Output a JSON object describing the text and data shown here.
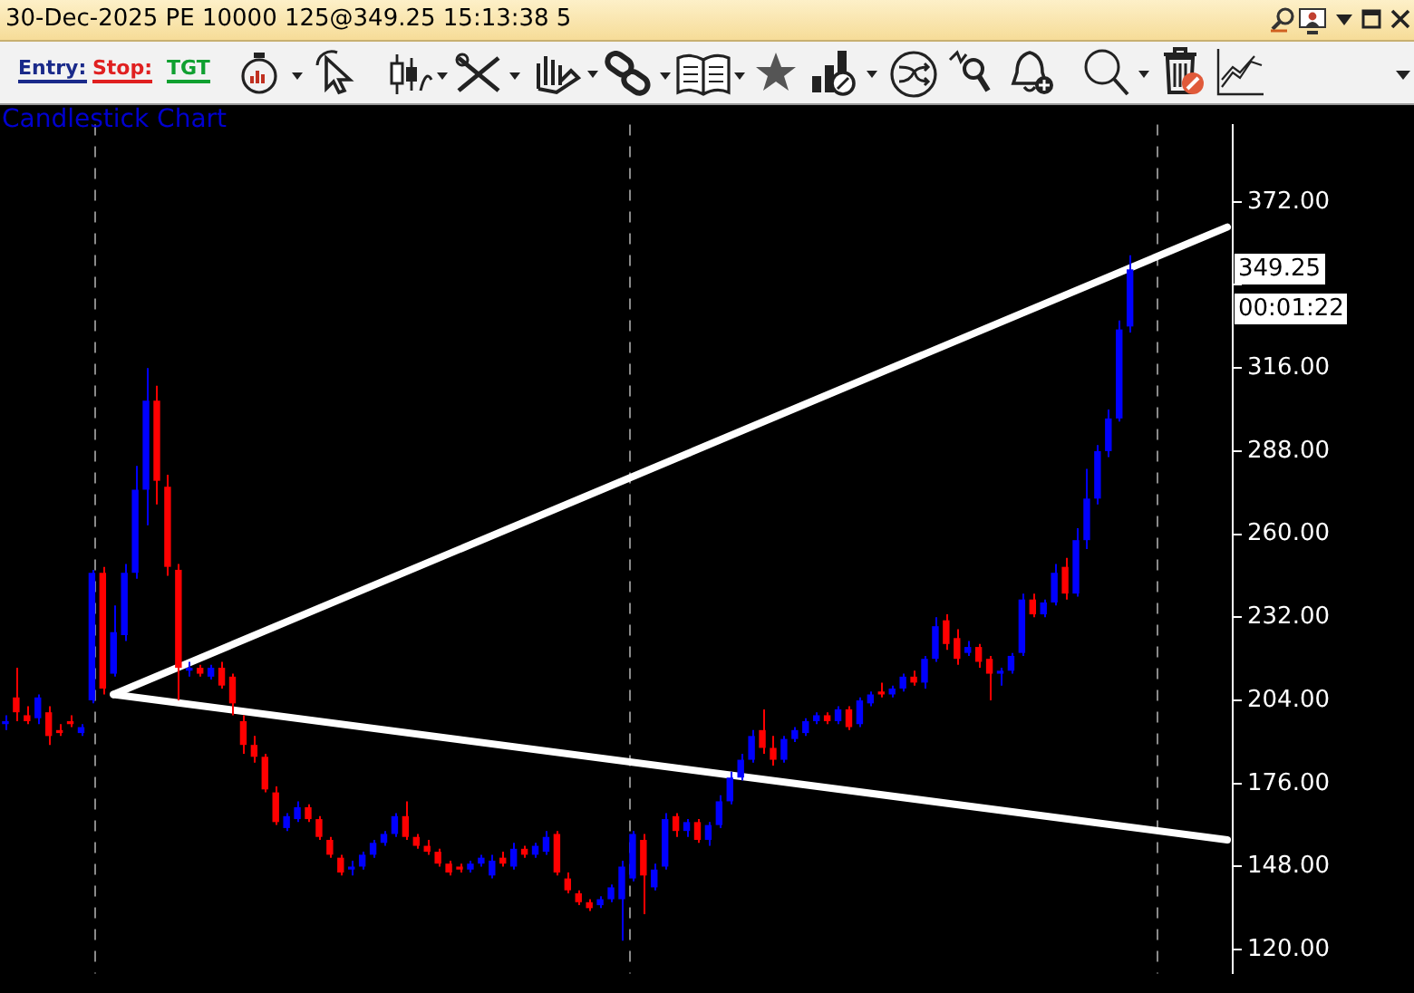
{
  "chart_data": {
    "type": "candlestick",
    "title": "30-Dec-2025 PE 10000 125@349.25 15:13:38 5",
    "subtitle": "Candlestick Chart",
    "categories": [
      null,
      null,
      null,
      null,
      null,
      null,
      null,
      null,
      null,
      null,
      null,
      null,
      null,
      null,
      null,
      null,
      null,
      null,
      null,
      null,
      null,
      null,
      null,
      null,
      null,
      null,
      null,
      null,
      null,
      null,
      null,
      null,
      null,
      null,
      null,
      null,
      null,
      null,
      null,
      null,
      null,
      null,
      null,
      null,
      null,
      null,
      null,
      null,
      null,
      null,
      null,
      null,
      null,
      null,
      null,
      null,
      null,
      null,
      null,
      null,
      null,
      null,
      null,
      null,
      null,
      null,
      null,
      null,
      null,
      null,
      null,
      null,
      null,
      null,
      null,
      null,
      null,
      null,
      null,
      null,
      null,
      null,
      null,
      null,
      null,
      null,
      null,
      null,
      null,
      null,
      null,
      null,
      null,
      null,
      null,
      null,
      null,
      null,
      null,
      null,
      null,
      null,
      null,
      null,
      null,
      null,
      null,
      null,
      null,
      null,
      null,
      null,
      null,
      null
    ],
    "ohlc": [
      [
        196,
        199,
        194,
        197
      ],
      [
        205,
        215,
        197,
        200
      ],
      [
        199,
        202,
        196,
        197
      ],
      [
        198,
        206,
        196,
        205
      ],
      [
        200,
        202,
        189,
        192
      ],
      [
        194,
        196,
        192,
        193
      ],
      [
        197,
        199,
        195,
        196
      ],
      [
        193,
        196,
        192,
        195
      ],
      [
        204,
        248,
        203,
        247
      ],
      [
        247,
        249,
        206,
        208
      ],
      [
        213,
        236,
        212,
        227
      ],
      [
        226,
        250,
        224,
        247
      ],
      [
        247,
        283,
        245,
        275
      ],
      [
        275,
        316,
        263,
        305
      ],
      [
        305,
        310,
        270,
        278
      ],
      [
        276,
        280,
        246,
        249
      ],
      [
        248,
        250,
        204,
        215
      ],
      [
        214,
        217,
        212,
        215
      ],
      [
        215,
        216,
        212,
        213
      ],
      [
        212,
        216,
        211,
        215
      ],
      [
        215,
        217,
        208,
        209
      ],
      [
        212,
        213,
        199,
        203
      ],
      [
        197,
        199,
        186,
        189
      ],
      [
        189,
        192,
        183,
        185
      ],
      [
        185,
        186,
        173,
        174
      ],
      [
        173,
        175,
        162,
        163
      ],
      [
        161,
        166,
        160,
        165
      ],
      [
        164,
        170,
        163,
        168
      ],
      [
        168,
        169,
        163,
        164
      ],
      [
        164,
        165,
        157,
        158
      ],
      [
        157,
        158,
        151,
        152
      ],
      [
        151,
        152,
        145,
        146
      ],
      [
        147,
        150,
        145,
        148
      ],
      [
        148,
        153,
        147,
        152
      ],
      [
        152,
        157,
        151,
        156
      ],
      [
        156,
        160,
        155,
        159
      ],
      [
        159,
        166,
        158,
        165
      ],
      [
        165,
        170,
        157,
        158
      ],
      [
        158,
        159,
        154,
        155
      ],
      [
        155,
        157,
        152,
        153
      ],
      [
        153,
        154,
        148,
        149
      ],
      [
        149,
        150,
        145,
        146
      ],
      [
        148,
        149,
        146,
        147
      ],
      [
        147,
        150,
        146,
        149
      ],
      [
        149,
        152,
        148,
        151
      ],
      [
        145,
        152,
        144,
        150
      ],
      [
        151,
        153,
        148,
        149
      ],
      [
        148,
        156,
        147,
        154
      ],
      [
        154,
        155,
        151,
        152
      ],
      [
        152,
        156,
        151,
        155
      ],
      [
        153,
        160,
        152,
        158
      ],
      [
        159,
        160,
        145,
        146
      ],
      [
        144,
        146,
        139,
        140
      ],
      [
        139,
        140,
        135,
        136
      ],
      [
        136,
        137,
        133,
        134
      ],
      [
        135,
        138,
        134,
        137
      ],
      [
        137,
        142,
        136,
        141
      ],
      [
        137,
        150,
        123,
        148
      ],
      [
        144,
        160,
        143,
        159
      ],
      [
        157,
        159,
        132,
        145
      ],
      [
        141,
        149,
        140,
        147
      ],
      [
        148,
        166,
        147,
        164
      ],
      [
        165,
        166,
        158,
        160
      ],
      [
        160,
        164,
        158,
        163
      ],
      [
        163,
        164,
        156,
        157
      ],
      [
        157,
        163,
        155,
        162
      ],
      [
        162,
        172,
        161,
        170
      ],
      [
        170,
        180,
        169,
        178
      ],
      [
        178,
        186,
        177,
        184
      ],
      [
        184,
        194,
        183,
        192
      ],
      [
        194,
        201,
        186,
        188
      ],
      [
        188,
        192,
        182,
        184
      ],
      [
        184,
        192,
        183,
        191
      ],
      [
        191,
        195,
        190,
        194
      ],
      [
        193,
        198,
        192,
        197
      ],
      [
        197,
        200,
        196,
        199
      ],
      [
        199,
        200,
        196,
        197
      ],
      [
        197,
        202,
        196,
        201
      ],
      [
        201,
        202,
        194,
        195
      ],
      [
        196,
        205,
        195,
        204
      ],
      [
        203,
        207,
        202,
        206
      ],
      [
        207,
        210,
        205,
        206
      ],
      [
        206,
        209,
        205,
        208
      ],
      [
        208,
        213,
        207,
        212
      ],
      [
        212,
        214,
        209,
        210
      ],
      [
        210,
        219,
        208,
        218
      ],
      [
        218,
        232,
        217,
        229
      ],
      [
        231,
        233,
        221,
        223
      ],
      [
        225,
        228,
        216,
        218
      ],
      [
        220,
        224,
        219,
        222
      ],
      [
        222,
        223,
        215,
        217
      ],
      [
        218,
        219,
        204,
        213
      ],
      [
        213,
        215,
        209,
        214
      ],
      [
        214,
        220,
        213,
        219
      ],
      [
        220,
        240,
        219,
        238
      ],
      [
        238,
        240,
        232,
        233
      ],
      [
        233,
        238,
        232,
        237
      ],
      [
        237,
        250,
        236,
        247
      ],
      [
        249,
        252,
        238,
        240
      ],
      [
        240,
        262,
        239,
        258
      ],
      [
        258,
        282,
        255,
        272
      ],
      [
        272,
        290,
        270,
        288
      ],
      [
        288,
        302,
        286,
        299
      ],
      [
        299,
        332,
        298,
        329
      ],
      [
        330,
        354,
        328,
        349.25
      ],
      null,
      null,
      null,
      null,
      null,
      null,
      null,
      null,
      null
    ],
    "colors": [
      "#0000ff",
      "#ff0000",
      "#ff0000",
      "#0000ff",
      "#ff0000",
      "#ff0000",
      "#ff0000",
      "#0000ff",
      "#0000ff",
      "#ff0000",
      "#0000ff",
      "#0000ff",
      "#0000ff",
      "#0000ff",
      "#ff0000",
      "#ff0000",
      "#ff0000",
      "#0000ff",
      "#ff0000",
      "#0000ff",
      "#ff0000",
      "#ff0000",
      "#ff0000",
      "#ff0000",
      "#ff0000",
      "#ff0000",
      "#0000ff",
      "#0000ff",
      "#ff0000",
      "#ff0000",
      "#ff0000",
      "#ff0000",
      "#0000ff",
      "#0000ff",
      "#0000ff",
      "#0000ff",
      "#0000ff",
      "#ff0000",
      "#ff0000",
      "#ff0000",
      "#ff0000",
      "#ff0000",
      "#ff0000",
      "#0000ff",
      "#0000ff",
      "#0000ff",
      "#ff0000",
      "#0000ff",
      "#ff0000",
      "#0000ff",
      "#0000ff",
      "#ff0000",
      "#ff0000",
      "#ff0000",
      "#ff0000",
      "#0000ff",
      "#0000ff",
      "#0000ff",
      "#0000ff",
      "#ff0000",
      "#0000ff",
      "#0000ff",
      "#ff0000",
      "#0000ff",
      "#ff0000",
      "#0000ff",
      "#0000ff",
      "#0000ff",
      "#0000ff",
      "#0000ff",
      "#ff0000",
      "#ff0000",
      "#0000ff",
      "#0000ff",
      "#0000ff",
      "#0000ff",
      "#ff0000",
      "#0000ff",
      "#ff0000",
      "#0000ff",
      "#0000ff",
      "#ff0000",
      "#0000ff",
      "#0000ff",
      "#ff0000",
      "#0000ff",
      "#0000ff",
      "#ff0000",
      "#ff0000",
      "#0000ff",
      "#ff0000",
      "#ff0000",
      "#0000ff",
      "#0000ff",
      "#0000ff",
      "#ff0000",
      "#0000ff",
      "#0000ff",
      "#ff0000",
      "#0000ff",
      "#0000ff",
      "#0000ff",
      "#0000ff",
      "#0000ff",
      "#0000ff",
      null,
      null,
      null,
      null,
      null,
      null,
      null,
      null,
      null
    ],
    "series": [
      {
        "type": "line",
        "color": "#ffffff",
        "values": [
          null,
          null,
          null,
          null,
          null,
          null,
          null,
          null,
          null,
          null,
          206,
          null,
          null,
          null,
          null,
          null,
          null,
          null,
          null,
          null,
          null,
          null,
          null,
          null,
          null,
          null,
          null,
          null,
          null,
          null,
          null,
          null,
          null,
          null,
          null,
          null,
          null,
          null,
          null,
          null,
          null,
          null,
          null,
          null,
          null,
          null,
          null,
          null,
          null,
          null,
          null,
          null,
          null,
          null,
          null,
          null,
          null,
          null,
          null,
          null,
          null,
          null,
          null,
          null,
          null,
          null,
          null,
          null,
          null,
          null,
          null,
          null,
          null,
          null,
          null,
          null,
          null,
          null,
          null,
          null,
          null,
          null,
          null,
          null,
          null,
          null,
          null,
          null,
          null,
          null,
          null,
          null,
          null,
          null,
          null,
          null,
          null,
          null,
          null,
          null,
          null,
          null,
          null,
          null,
          null,
          null,
          null,
          null,
          null,
          null,
          null,
          null,
          null,
          363.5
        ]
      },
      {
        "type": "line",
        "color": "#ffffff",
        "values": [
          null,
          null,
          null,
          null,
          null,
          null,
          null,
          null,
          null,
          null,
          206,
          null,
          null,
          null,
          null,
          null,
          null,
          null,
          null,
          null,
          null,
          null,
          null,
          null,
          null,
          null,
          null,
          null,
          null,
          null,
          null,
          null,
          null,
          null,
          null,
          null,
          null,
          null,
          null,
          null,
          null,
          null,
          null,
          null,
          null,
          null,
          null,
          null,
          null,
          null,
          null,
          null,
          null,
          null,
          null,
          null,
          null,
          null,
          null,
          null,
          null,
          null,
          null,
          null,
          null,
          null,
          null,
          null,
          null,
          null,
          null,
          null,
          null,
          null,
          null,
          null,
          null,
          null,
          null,
          null,
          null,
          null,
          null,
          null,
          null,
          null,
          null,
          null,
          null,
          null,
          null,
          null,
          null,
          null,
          null,
          null,
          null,
          null,
          null,
          null,
          null,
          null,
          null,
          null,
          null,
          null,
          null,
          null,
          null,
          null,
          null,
          null,
          null,
          157
        ]
      }
    ],
    "ylim": [
      112,
      398
    ],
    "yticks": [
      {
        "value": 120,
        "label": "120.00"
      },
      {
        "value": 148,
        "label": "148.00"
      },
      {
        "value": 176,
        "label": "176.00"
      },
      {
        "value": 204,
        "label": "204.00"
      },
      {
        "value": 232,
        "label": "232.00"
      },
      {
        "value": 260,
        "label": "260.00"
      },
      {
        "value": 288,
        "label": "288.00"
      },
      {
        "value": 316,
        "label": "316.00"
      },
      {
        "value": 344,
        "label": null
      },
      {
        "value": 372,
        "label": "372.00"
      }
    ],
    "tick_labels": "y",
    "annotations": [
      "Entry:",
      "Stop:",
      "TGT",
      "349.25",
      "00:01:22"
    ]
  }
}
